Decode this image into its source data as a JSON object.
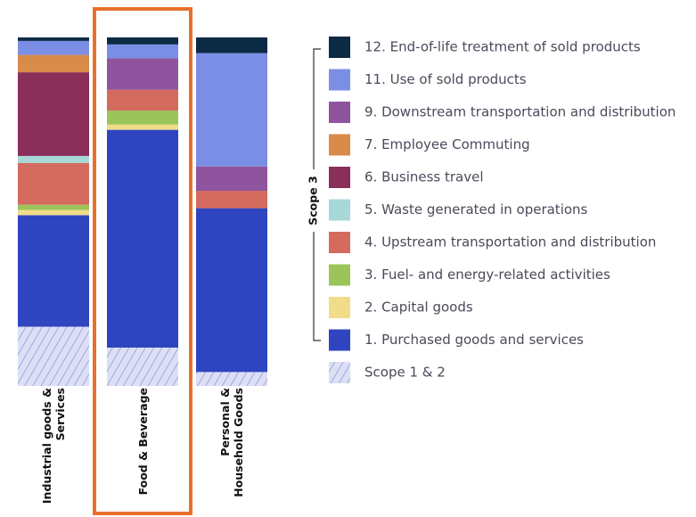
{
  "chart_data": {
    "type": "stacked_bar",
    "categories": [
      "Industrial goods & Services",
      "Food & Beverage",
      "Personal & Household Goods"
    ],
    "series": [
      {
        "name": "12. End-of-life treatment of sold products",
        "color": "#0b2a44",
        "values": [
          1,
          2,
          4.5
        ]
      },
      {
        "name": "11. Use of sold products",
        "color": "#7b8ee6",
        "values": [
          4,
          4,
          32.5
        ]
      },
      {
        "name": "9. Downstream transportation and distribution",
        "color": "#8e559e",
        "values": [
          0,
          9,
          7
        ]
      },
      {
        "name": "7. Employee Commuting",
        "color": "#d98b4a",
        "values": [
          5,
          0,
          0
        ]
      },
      {
        "name": "6. Business travel",
        "color": "#8a2e5a",
        "values": [
          24,
          0,
          0
        ]
      },
      {
        "name": "5. Waste generated in operations",
        "color": "#a8d8d8",
        "values": [
          2,
          0,
          0
        ]
      },
      {
        "name": "4. Upstream transportation and distribution",
        "color": "#d46b5e",
        "values": [
          12,
          6,
          5
        ]
      },
      {
        "name": "3. Fuel- and energy-related activities",
        "color": "#9cc45a",
        "values": [
          1.5,
          4,
          0
        ]
      },
      {
        "name": "2. Capital goods",
        "color": "#f1dc8a",
        "values": [
          1.5,
          1.5,
          0
        ]
      },
      {
        "name": "1. Purchased goods and services",
        "color": "#2f45c0",
        "values": [
          32,
          62.5,
          47
        ]
      },
      {
        "name": "Scope 1 & 2",
        "color": "#c8cdf0",
        "hatched": true,
        "values": [
          17,
          11,
          4
        ]
      }
    ],
    "scope_label": "Scope 3",
    "highlight": 1,
    "highlight_color": "#e8702a"
  }
}
